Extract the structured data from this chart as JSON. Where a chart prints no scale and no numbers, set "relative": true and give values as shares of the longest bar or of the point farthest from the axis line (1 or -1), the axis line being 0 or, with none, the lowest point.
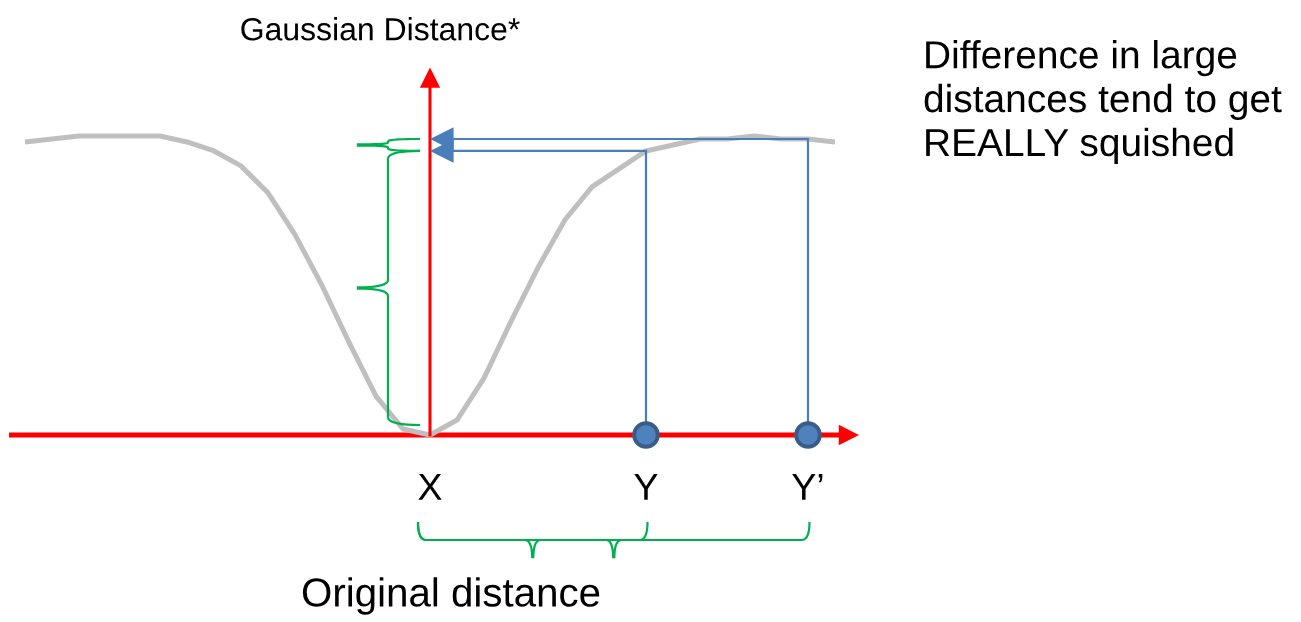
{
  "chart_data": {
    "type": "line",
    "ylabel": "Gaussian Distance*",
    "xlabel": "Original distance",
    "annotations": [
      "Difference in large\ndistances tend to get\nREALLY squished"
    ],
    "relative": true,
    "categories": [
      null,
      null,
      null,
      null,
      null,
      null,
      null,
      null,
      null,
      null,
      null,
      null,
      null,
      null,
      null,
      "X",
      null,
      null,
      null,
      null,
      null,
      null,
      null,
      "Y",
      null,
      null,
      null,
      null,
      null,
      "Y’",
      null
    ],
    "series": [
      {
        "type": "line",
        "color": "#bfbfbf",
        "values": [
          0.98,
          0.99,
          1.0,
          1.0,
          1.0,
          1.0,
          0.98,
          0.95,
          0.9,
          0.81,
          0.67,
          0.5,
          0.31,
          0.13,
          0.02,
          0,
          0.05,
          0.19,
          0.38,
          0.56,
          0.72,
          0.83,
          0.89,
          0.95,
          0.97,
          0.99,
          0.99,
          1.0,
          0.99,
          0.99,
          0.98
        ]
      },
      {
        "type": "scatter",
        "color": "#4f81bd",
        "marker": "circle",
        "x": [
          "Y",
          "Y’"
        ],
        "values": [
          0,
          0
        ]
      }
    ]
  }
}
